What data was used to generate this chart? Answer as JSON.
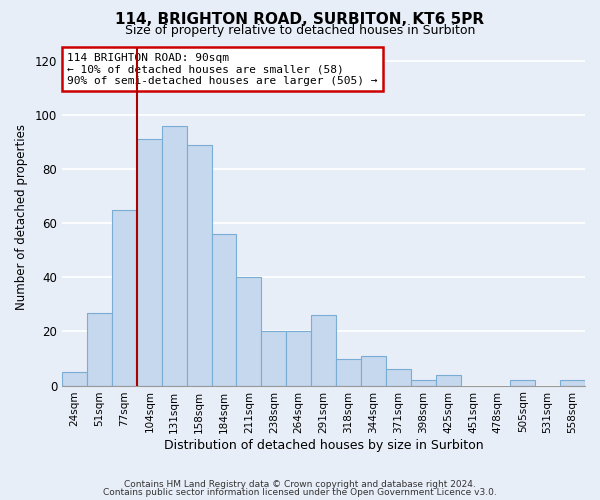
{
  "title": "114, BRIGHTON ROAD, SURBITON, KT6 5PR",
  "subtitle": "Size of property relative to detached houses in Surbiton",
  "xlabel": "Distribution of detached houses by size in Surbiton",
  "ylabel": "Number of detached properties",
  "bar_labels": [
    "24sqm",
    "51sqm",
    "77sqm",
    "104sqm",
    "131sqm",
    "158sqm",
    "184sqm",
    "211sqm",
    "238sqm",
    "264sqm",
    "291sqm",
    "318sqm",
    "344sqm",
    "371sqm",
    "398sqm",
    "425sqm",
    "451sqm",
    "478sqm",
    "505sqm",
    "531sqm",
    "558sqm"
  ],
  "bar_values": [
    5,
    27,
    65,
    91,
    96,
    89,
    56,
    40,
    20,
    20,
    26,
    10,
    11,
    6,
    2,
    4,
    0,
    0,
    2,
    0,
    2
  ],
  "bar_color": "#c5d8ee",
  "bar_edge_color": "#7aadd4",
  "ylim": [
    0,
    125
  ],
  "yticks": [
    0,
    20,
    40,
    60,
    80,
    100,
    120
  ],
  "vline_color": "#aa0000",
  "annotation_title": "114 BRIGHTON ROAD: 90sqm",
  "annotation_line1": "← 10% of detached houses are smaller (58)",
  "annotation_line2": "90% of semi-detached houses are larger (505) →",
  "annotation_box_color": "#ffffff",
  "annotation_box_edge": "#cc0000",
  "footer1": "Contains HM Land Registry data © Crown copyright and database right 2024.",
  "footer2": "Contains public sector information licensed under the Open Government Licence v3.0.",
  "background_color": "#e8eef8",
  "plot_background": "#e8eef8",
  "grid_color": "#ffffff",
  "title_fontsize": 11,
  "subtitle_fontsize": 9
}
